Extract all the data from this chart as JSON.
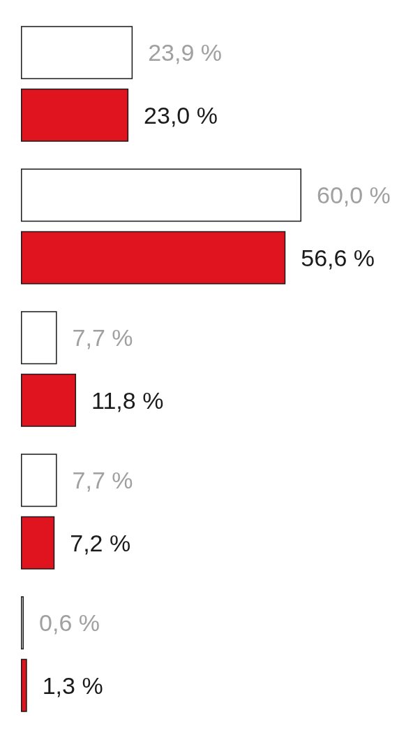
{
  "chart_data": {
    "type": "bar",
    "orientation": "horizontal",
    "categories": [
      null,
      null,
      null,
      null,
      null
    ],
    "series": [
      {
        "color": "#ffffff",
        "values": [
          23.9,
          60.0,
          7.7,
          7.7,
          0.6
        ],
        "value_labels": [
          "23,9 %",
          "60,0 %",
          "7,7 %",
          "7,7 %",
          "0,6 %"
        ]
      },
      {
        "color": "#e0141e",
        "values": [
          23.0,
          56.6,
          11.8,
          7.2,
          1.3
        ],
        "value_labels": [
          "23,0 %",
          "56,6 %",
          "11,8 %",
          "7,2 %",
          "1,3 %"
        ]
      }
    ]
  }
}
